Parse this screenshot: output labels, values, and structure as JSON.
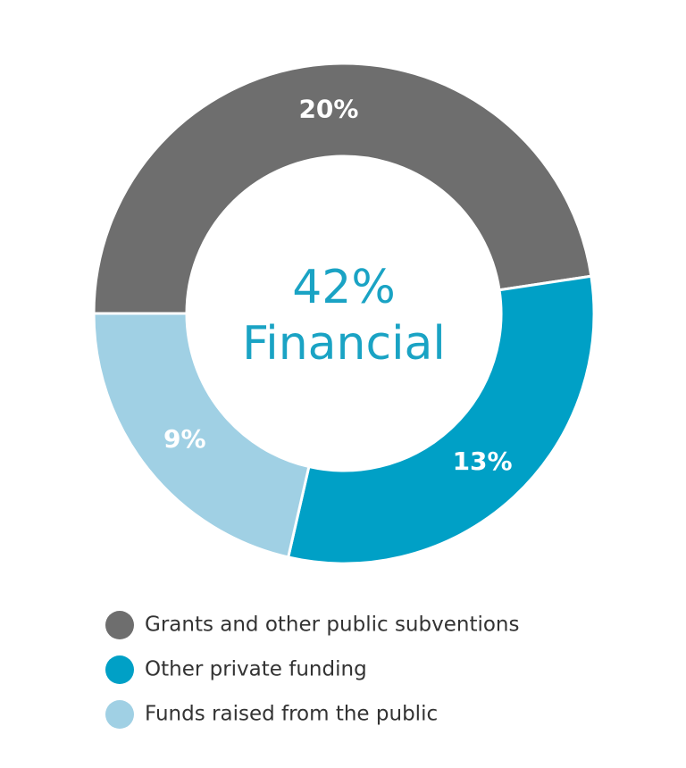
{
  "chart_data": {
    "type": "donut",
    "center_value": "42%",
    "center_text": "Financial",
    "categories": [
      "Grants and other public subventions",
      "Other private funding",
      "Funds raised from the public"
    ],
    "values": [
      20,
      13,
      9
    ],
    "value_labels": [
      "20%",
      "13%",
      "9%"
    ],
    "colors": [
      "#6e6e6e",
      "#00a0c6",
      "#a0d0e4"
    ]
  }
}
